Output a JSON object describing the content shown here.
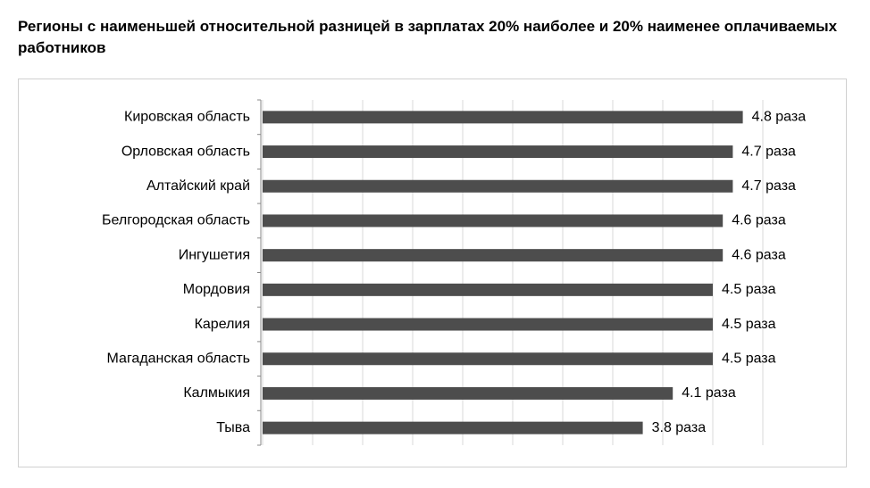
{
  "chart_data": {
    "type": "bar",
    "orientation": "horizontal",
    "title": "Регионы с наименьшей относительной разницей в зарплатах 20% наиболее и 20% наименее оплачиваемых работников",
    "categories": [
      "Кировская область",
      "Орловская область",
      "Алтайский край",
      "Белгородская область",
      "Ингушетия",
      "Мордовия",
      "Карелия",
      "Магаданская область",
      "Калмыкия",
      "Тыва"
    ],
    "values": [
      4.8,
      4.7,
      4.7,
      4.6,
      4.6,
      4.5,
      4.5,
      4.5,
      4.1,
      3.8
    ],
    "value_labels": [
      "4.8 раза",
      "4.7 раза",
      "4.7 раза",
      "4.6 раза",
      "4.6 раза",
      "4.5 раза",
      "4.5 раза",
      "4.5 раза",
      "4.1 раза",
      "3.8 раза"
    ],
    "color": "#4d4d4d",
    "xlim": [
      0,
      5
    ],
    "xticks": [
      0,
      0.5,
      1,
      1.5,
      2,
      2.5,
      3,
      3.5,
      4,
      4.5,
      5
    ],
    "grid": true
  }
}
